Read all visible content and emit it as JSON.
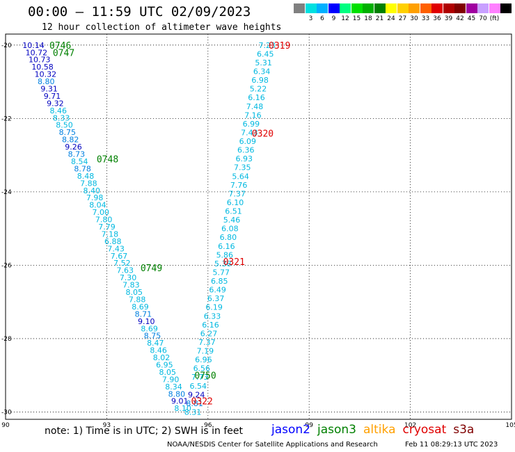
{
  "header": {
    "title": "00:00 – 11:59 UTC 02/09/2023",
    "subtitle": "12 hour collection of altimeter wave heights"
  },
  "colorbar": {
    "colors": [
      "#808080",
      "#00e0e0",
      "#00b0ff",
      "#0000ff",
      "#00ff80",
      "#00e000",
      "#00b000",
      "#008000",
      "#ffff00",
      "#ffd000",
      "#ffa000",
      "#ff6000",
      "#e00000",
      "#b00000",
      "#800000",
      "#a000a0",
      "#c8a0ff",
      "#ff80ff",
      "#000000"
    ],
    "labels": [
      "3",
      "6",
      "9",
      "12",
      "15",
      "18",
      "21",
      "24",
      "27",
      "30",
      "33",
      "36",
      "39",
      "42",
      "45",
      "70",
      "(ft)"
    ]
  },
  "map": {
    "lon_range": [
      90,
      105
    ],
    "lat_range": [
      -30.2,
      -19.7
    ],
    "x_ticks": [
      "90",
      "93",
      "96",
      "99",
      "102",
      "105"
    ],
    "y_ticks": [
      "-20",
      "-22",
      "-24",
      "-26",
      "-28",
      "-30"
    ],
    "pass_labels": [
      {
        "text": "0746",
        "lon": 91.3,
        "lat": -20.0,
        "satellite": "jason3"
      },
      {
        "text": "0747",
        "lon": 91.4,
        "lat": -20.2,
        "satellite": "jason3"
      },
      {
        "text": "0748",
        "lon": 92.7,
        "lat": -23.1,
        "satellite": "jason3"
      },
      {
        "text": "0749",
        "lon": 94.0,
        "lat": -26.07,
        "satellite": "jason3"
      },
      {
        "text": "0750",
        "lon": 95.6,
        "lat": -29.0,
        "satellite": "jason3"
      },
      {
        "text": "0319",
        "lon": 97.8,
        "lat": -20.0,
        "satellite": "cryosat"
      },
      {
        "text": "0320",
        "lon": 97.3,
        "lat": -22.4,
        "satellite": "cryosat"
      },
      {
        "text": "0321",
        "lon": 96.45,
        "lat": -25.9,
        "satellite": "cryosat"
      },
      {
        "text": "0322",
        "lon": 95.5,
        "lat": -29.7,
        "satellite": "cryosat"
      }
    ],
    "track_left": {
      "start": [
        90.5,
        -20.0
      ],
      "end": [
        95.0,
        -29.9
      ],
      "values": [
        "10.14",
        "10.72",
        "10.73",
        "10.58",
        "10.32",
        "8.80",
        "9.31",
        "9.71",
        "9.32",
        "8.46",
        "8.33",
        "8.50",
        "8.75",
        "8.82",
        "9.26",
        "8.73",
        "8.54",
        "8.78",
        "8.48",
        "7.88",
        "8.40",
        "7.98",
        "8.04",
        "7.00",
        "7.80",
        "7.79",
        "7.18",
        "6.88",
        "7.43",
        "7.67",
        "7.52",
        "7.63",
        "7.30",
        "7.83",
        "8.05",
        "7.88",
        "8.69",
        "8.71",
        "9.10",
        "8.69",
        "8.75",
        "8.47",
        "8.46",
        "8.02",
        "6.95",
        "8.05",
        "7.90",
        "8.34",
        "8.80",
        "9.01",
        "8.10"
      ]
    },
    "track_right": {
      "start": [
        97.5,
        -20.0
      ],
      "end": [
        95.3,
        -30.0
      ],
      "values": [
        "7.23",
        "6.45",
        "5.31",
        "6.34",
        "6.98",
        "5.22",
        "6.16",
        "7.48",
        "7.16",
        "6.99",
        "7.43",
        "6.09",
        "6.36",
        "6.93",
        "7.35",
        "5.64",
        "7.76",
        "7.37",
        "6.10",
        "6.51",
        "5.46",
        "6.08",
        "6.80",
        "6.16",
        "5.86",
        "5.38",
        "5.77",
        "6.85",
        "6.49",
        "6.37",
        "6.19",
        "6.33",
        "6.16",
        "6.27",
        "7.37",
        "7.19",
        "6.96",
        "6.56",
        "7.73",
        "6.54",
        "9.24",
        "8.81",
        "8.31"
      ]
    }
  },
  "footer": {
    "note": "note: 1) Time is in UTC; 2) SWH is in feet",
    "legend": [
      {
        "name": "jason2",
        "color": "#0000ff"
      },
      {
        "name": "jason3",
        "color": "#008000"
      },
      {
        "name": "altika",
        "color": "#ffa000"
      },
      {
        "name": "cryosat",
        "color": "#e00000"
      },
      {
        "name": "s3a",
        "color": "#800000"
      }
    ],
    "credit": "NOAA/NESDIS Center for Satellite Applications and Research",
    "timestamp": "Feb 11 08:29:13 UTC 2023"
  }
}
